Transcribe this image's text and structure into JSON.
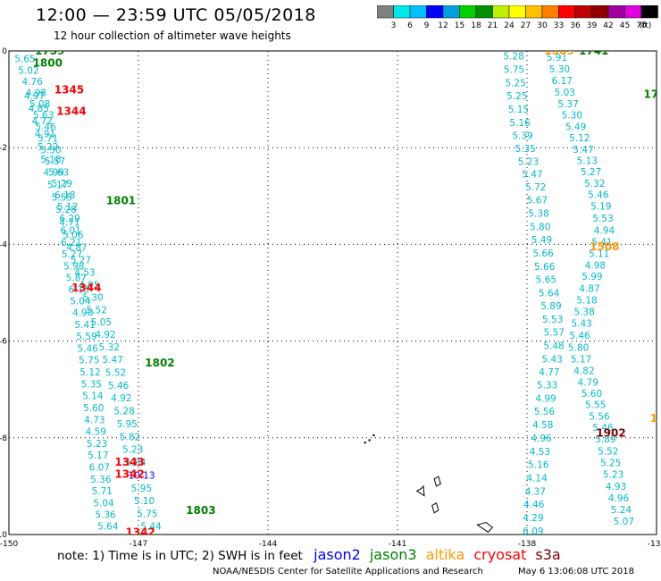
{
  "header": {
    "title": "12:00 — 23:59 UTC 05/05/2018",
    "subtitle": "12 hour collection of altimeter wave heights"
  },
  "colorbar": {
    "ticks": [
      "3",
      "6",
      "9",
      "12",
      "15",
      "18",
      "21",
      "24",
      "27",
      "30",
      "33",
      "36",
      "39",
      "42",
      "45",
      "70"
    ],
    "unit": "(ft)",
    "colors": [
      "#808080",
      "#00e8e8",
      "#00c0ff",
      "#0000ff",
      "#00a0e0",
      "#00d000",
      "#009000",
      "#c0f000",
      "#ffff00",
      "#ffc000",
      "#ff8000",
      "#ff0000",
      "#c00000",
      "#900000",
      "#a000a0",
      "#e000e0",
      "#000000"
    ]
  },
  "axes": {
    "x_ticks": [
      "-150",
      "-147",
      "-144",
      "-141",
      "-138",
      "-135"
    ],
    "y_ticks": [
      "0",
      "-2",
      "-4",
      "-6",
      "-8",
      "-10"
    ]
  },
  "note": {
    "prefix": "note: 1) Time is in UTC; 2) SWH is in feet",
    "legend": [
      {
        "name": "jason2",
        "color": "#0000ff"
      },
      {
        "name": "jason3",
        "color": "#008000"
      },
      {
        "name": "altika",
        "color": "#ff9900"
      },
      {
        "name": "cryosat",
        "color": "#ff0000"
      },
      {
        "name": "s3a",
        "color": "#800000"
      }
    ]
  },
  "credit": "NOAA/NESDIS Center for Satellite Applications and Research",
  "timestamp": "May  6 13:06:08 UTC 2018",
  "colors": {
    "swh": "#00bbcc",
    "jason2": "#0000ff",
    "jason3": "#008000",
    "altika": "#ff9900",
    "cryosat": "#ff0000",
    "s3a": "#800000"
  },
  "map_data": {
    "lon_range": [
      -150,
      -135
    ],
    "lat_range": [
      -10,
      0
    ],
    "tracks": [
      {
        "name": "track-a",
        "pts": [
          [
            0.05,
            0.0
          ],
          [
            0.15,
            -0.3
          ],
          [
            0.3,
            -0.7
          ],
          [
            0.45,
            -1.1
          ],
          [
            0.55,
            -1.35
          ],
          [
            0.62,
            -1.7
          ],
          [
            0.7,
            -2.05
          ],
          [
            0.85,
            -2.4
          ],
          [
            1.0,
            -2.85
          ],
          [
            1.1,
            -3.2
          ],
          [
            1.18,
            -3.6
          ],
          [
            1.2,
            -4.0
          ],
          [
            1.22,
            -4.3
          ],
          [
            1.3,
            -4.7
          ],
          [
            1.38,
            -5.0
          ],
          [
            1.42,
            -5.3
          ],
          [
            1.5,
            -5.6
          ],
          [
            1.55,
            -5.9
          ],
          [
            1.58,
            -6.2
          ],
          [
            1.62,
            -6.5
          ],
          [
            1.66,
            -6.9
          ],
          [
            1.7,
            -7.2
          ],
          [
            1.73,
            -7.6
          ],
          [
            1.78,
            -8.0
          ],
          [
            1.82,
            -8.4
          ],
          [
            1.87,
            -8.8
          ],
          [
            1.92,
            -9.2
          ],
          [
            1.98,
            -9.6
          ],
          [
            2.05,
            -9.9
          ]
        ],
        "vals": [
          "5.37",
          "5.65",
          "5.02",
          "4.76",
          "4.98",
          "5.08",
          "5.63",
          "5.46",
          "5.71",
          "5.50",
          "5.57",
          "5.63",
          "5.29",
          "6.18",
          "5.12",
          "6.29",
          "6.01",
          "6.21",
          "5.27",
          "5.98",
          "5.87",
          "6.15",
          "5.04",
          "4.90",
          "5.41",
          "5.59",
          "5.46",
          "5.75",
          "5.12",
          "5.35",
          "5.14",
          "5.60",
          "4.73",
          "4.59",
          "5.23",
          "5.17",
          "6.07",
          "5.36",
          "5.71",
          "5.04",
          "5.36",
          "5.64"
        ]
      },
      {
        "name": "track-b",
        "pts": [
          [
            0.35,
            -1.0
          ],
          [
            0.5,
            -1.4
          ],
          [
            0.6,
            -1.8
          ],
          [
            0.7,
            -2.2
          ],
          [
            0.8,
            -2.6
          ],
          [
            0.95,
            -3.0
          ],
          [
            1.1,
            -3.4
          ],
          [
            1.22,
            -3.8
          ],
          [
            1.35,
            -4.2
          ],
          [
            1.5,
            -4.6
          ],
          [
            1.65,
            -5.0
          ],
          [
            1.78,
            -5.4
          ],
          [
            1.95,
            -5.8
          ],
          [
            2.05,
            -6.1
          ],
          [
            2.15,
            -6.4
          ],
          [
            2.25,
            -6.8
          ],
          [
            2.35,
            -7.2
          ],
          [
            2.45,
            -7.6
          ],
          [
            2.55,
            -8.0
          ],
          [
            2.65,
            -8.4
          ],
          [
            2.75,
            -8.8
          ],
          [
            2.85,
            -9.2
          ],
          [
            2.95,
            -9.6
          ],
          [
            3.05,
            -9.9
          ]
        ],
        "vals": [
          "4.97",
          "4.85",
          "4.72",
          "4.91",
          "5.22",
          "5.18",
          "4.99",
          "5.17",
          "5.55",
          "5.28",
          "4.71",
          "5.06",
          "4.87",
          "5.27",
          "4.53",
          "4.95",
          "5.30",
          "5.52",
          "5.05",
          "4.92",
          "5.32",
          "5.47",
          "5.52",
          "5.46",
          "4.92",
          "5.28",
          "5.95",
          "5.82",
          "5.23",
          "5.84",
          "10.13",
          "5.95",
          "5.10",
          "5.75",
          "5.44"
        ]
      },
      {
        "name": "track-c",
        "pts": [
          [
            11.45,
            0.1
          ],
          [
            11.45,
            -0.4
          ],
          [
            11.5,
            -0.8
          ],
          [
            11.55,
            -1.2
          ],
          [
            11.6,
            -1.6
          ],
          [
            11.7,
            -2.0
          ],
          [
            11.8,
            -2.4
          ],
          [
            11.95,
            -2.8
          ],
          [
            12.0,
            -3.2
          ],
          [
            12.05,
            -3.6
          ],
          [
            12.1,
            -4.0
          ],
          [
            12.15,
            -4.4
          ],
          [
            12.2,
            -4.8
          ],
          [
            12.3,
            -5.2
          ],
          [
            12.35,
            -5.6
          ],
          [
            12.4,
            -6.0
          ],
          [
            12.35,
            -6.4
          ],
          [
            12.25,
            -6.8
          ],
          [
            12.2,
            -7.2
          ],
          [
            12.15,
            -7.6
          ],
          [
            12.1,
            -8.0
          ],
          [
            12.05,
            -8.4
          ],
          [
            12.0,
            -8.8
          ],
          [
            11.95,
            -9.2
          ],
          [
            11.9,
            -9.6
          ],
          [
            11.9,
            -10.0
          ]
        ],
        "vals": [
          "5.57",
          "5.28",
          "5.75",
          "5.25",
          "5.25",
          "5.15",
          "5.16",
          "5.39",
          "5.35",
          "5.23",
          "5.47",
          "5.72",
          "5.67",
          "5.38",
          "5.80",
          "5.49",
          "5.66",
          "5.66",
          "5.65",
          "5.64",
          "5.89",
          "5.53",
          "5.57",
          "5.48",
          "5.43",
          "4.77",
          "5.33",
          "4.99",
          "5.56",
          "4.58",
          "4.96",
          "4.53",
          "5.16",
          "4.14",
          "4.37",
          "4.46",
          "4.29",
          "6.09"
        ]
      },
      {
        "name": "track-d",
        "pts": [
          [
            12.45,
            -0.2
          ],
          [
            12.55,
            -0.6
          ],
          [
            12.65,
            -1.0
          ],
          [
            12.8,
            -1.4
          ],
          [
            12.95,
            -1.8
          ],
          [
            13.1,
            -2.2
          ],
          [
            13.25,
            -2.6
          ],
          [
            13.4,
            -3.0
          ],
          [
            13.5,
            -3.4
          ],
          [
            13.55,
            -3.8
          ],
          [
            13.45,
            -4.2
          ],
          [
            13.3,
            -4.6
          ],
          [
            13.2,
            -5.0
          ],
          [
            13.1,
            -5.4
          ],
          [
            13.0,
            -5.8
          ],
          [
            12.95,
            -6.2
          ],
          [
            13.05,
            -6.6
          ],
          [
            13.2,
            -7.0
          ],
          [
            13.35,
            -7.4
          ],
          [
            13.5,
            -7.8
          ],
          [
            13.6,
            -8.2
          ],
          [
            13.7,
            -8.6
          ],
          [
            13.8,
            -9.0
          ],
          [
            13.9,
            -9.4
          ],
          [
            14.0,
            -9.8
          ]
        ],
        "vals": [
          "5.91",
          "5.30",
          "6.17",
          "5.03",
          "5.37",
          "5.30",
          "5.49",
          "5.12",
          "5.47",
          "5.13",
          "5.27",
          "5.32",
          "5.46",
          "5.19",
          "5.53",
          "4.94",
          "5.41",
          "5.11",
          "4.98",
          "5.99",
          "4.87",
          "5.18",
          "5.38",
          "5.43",
          "5.46",
          "5.80",
          "5.17",
          "4.82",
          "4.79",
          "5.60",
          "5.55",
          "5.56",
          "5.46",
          "5.89",
          "5.52",
          "5.25",
          "5.23",
          "4.93",
          "4.96",
          "5.24",
          "5.07"
        ]
      }
    ],
    "time_labels": [
      {
        "text": "1759",
        "sat": "jason3",
        "lon": -149.4,
        "lat": 0.0
      },
      {
        "text": "1800",
        "sat": "jason3",
        "lon": -149.45,
        "lat": -0.25
      },
      {
        "text": "1345",
        "sat": "cryosat",
        "lon": -148.95,
        "lat": -0.8
      },
      {
        "text": "1344",
        "sat": "cryosat",
        "lon": -148.9,
        "lat": -1.25
      },
      {
        "text": "1801",
        "sat": "jason3",
        "lon": -147.75,
        "lat": -3.1
      },
      {
        "text": "1344",
        "sat": "cryosat",
        "lon": -148.55,
        "lat": -4.9
      },
      {
        "text": "1802",
        "sat": "jason3",
        "lon": -146.85,
        "lat": -6.45
      },
      {
        "text": "1343",
        "sat": "cryosat",
        "lon": -147.55,
        "lat": -8.5
      },
      {
        "text": "1342",
        "sat": "cryosat",
        "lon": -147.55,
        "lat": -8.75
      },
      {
        "text": "1803",
        "sat": "jason3",
        "lon": -145.9,
        "lat": -9.5
      },
      {
        "text": "1342",
        "sat": "cryosat",
        "lon": -147.3,
        "lat": -9.95
      },
      {
        "text": "1509",
        "sat": "altika",
        "lon": -137.6,
        "lat": 0.0
      },
      {
        "text": "1741",
        "sat": "jason3",
        "lon": -136.8,
        "lat": 0.0
      },
      {
        "text": "1742",
        "sat": "jason3",
        "lon": -135.3,
        "lat": -0.9
      },
      {
        "text": "1508",
        "sat": "altika",
        "lon": -136.55,
        "lat": -4.05
      },
      {
        "text": "1902",
        "sat": "s3a",
        "lon": -136.4,
        "lat": -7.9
      },
      {
        "text": "15",
        "sat": "altika",
        "lon": -135.15,
        "lat": -7.6
      }
    ],
    "islands": [
      [
        [
          -140.55,
          -9.1
        ],
        [
          -140.45,
          -9.05
        ],
        [
          -140.4,
          -9.0
        ],
        [
          -140.38,
          -9.2
        ],
        [
          -140.55,
          -9.1
        ]
      ],
      [
        [
          -140.15,
          -8.85
        ],
        [
          -140.05,
          -8.8
        ],
        [
          -140.0,
          -8.95
        ],
        [
          -140.1,
          -9.0
        ],
        [
          -140.15,
          -8.85
        ]
      ],
      [
        [
          -140.2,
          -9.4
        ],
        [
          -140.1,
          -9.35
        ],
        [
          -140.05,
          -9.5
        ],
        [
          -140.15,
          -9.55
        ],
        [
          -140.2,
          -9.4
        ]
      ],
      [
        [
          -139.15,
          -9.8
        ],
        [
          -138.95,
          -9.75
        ],
        [
          -138.8,
          -9.85
        ],
        [
          -138.9,
          -9.95
        ],
        [
          -139.15,
          -9.8
        ]
      ]
    ]
  }
}
